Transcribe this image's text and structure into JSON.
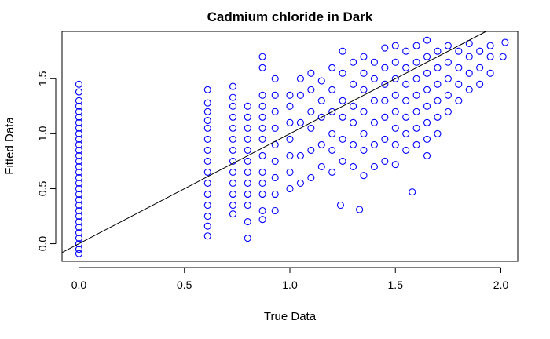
{
  "chart_data": {
    "type": "scatter",
    "title": "Cadmium chloride in Dark",
    "xlabel": "True Data",
    "ylabel": "Fitted Data",
    "xlim": [
      -0.08,
      2.08
    ],
    "ylim": [
      -0.16,
      1.93
    ],
    "x_ticks": [
      0.0,
      0.5,
      1.0,
      1.5,
      2.0
    ],
    "x_tick_labels": [
      "0.0",
      "0.5",
      "1.0",
      "1.5",
      "2.0"
    ],
    "y_ticks": [
      0.0,
      0.5,
      1.0,
      1.5
    ],
    "y_tick_labels": [
      "0.0",
      "0.5",
      "1.0",
      "1.5"
    ],
    "grid": false,
    "marker": "open-circle",
    "point_color": "#0000ff",
    "reference_line": {
      "intercept": 0.0,
      "slope": 1.0,
      "color": "#000000"
    },
    "series": [
      {
        "points": [
          [
            0,
            -0.09
          ],
          [
            0,
            -0.05
          ],
          [
            0,
            0.0
          ],
          [
            0,
            0.05
          ],
          [
            0,
            0.1
          ],
          [
            0,
            0.15
          ],
          [
            0,
            0.2
          ],
          [
            0,
            0.25
          ],
          [
            0,
            0.3
          ],
          [
            0,
            0.35
          ],
          [
            0,
            0.4
          ],
          [
            0,
            0.45
          ],
          [
            0,
            0.5
          ],
          [
            0,
            0.55
          ],
          [
            0,
            0.6
          ],
          [
            0,
            0.65
          ],
          [
            0,
            0.7
          ],
          [
            0,
            0.75
          ],
          [
            0,
            0.8
          ],
          [
            0,
            0.85
          ],
          [
            0,
            0.9
          ],
          [
            0,
            0.95
          ],
          [
            0,
            1.0
          ],
          [
            0,
            1.05
          ],
          [
            0,
            1.1
          ],
          [
            0,
            1.15
          ],
          [
            0,
            1.2
          ],
          [
            0,
            1.25
          ],
          [
            0,
            1.3
          ],
          [
            0,
            1.38
          ],
          [
            0,
            1.45
          ],
          [
            0.61,
            0.07
          ],
          [
            0.61,
            0.16
          ],
          [
            0.61,
            0.25
          ],
          [
            0.61,
            0.35
          ],
          [
            0.61,
            0.45
          ],
          [
            0.61,
            0.55
          ],
          [
            0.61,
            0.65
          ],
          [
            0.61,
            0.75
          ],
          [
            0.61,
            0.85
          ],
          [
            0.61,
            0.95
          ],
          [
            0.61,
            1.05
          ],
          [
            0.61,
            1.12
          ],
          [
            0.61,
            1.2
          ],
          [
            0.61,
            1.28
          ],
          [
            0.61,
            1.4
          ],
          [
            0.73,
            0.27
          ],
          [
            0.73,
            0.35
          ],
          [
            0.73,
            0.45
          ],
          [
            0.73,
            0.55
          ],
          [
            0.73,
            0.65
          ],
          [
            0.73,
            0.75
          ],
          [
            0.73,
            0.85
          ],
          [
            0.73,
            0.95
          ],
          [
            0.73,
            1.05
          ],
          [
            0.73,
            1.15
          ],
          [
            0.73,
            1.25
          ],
          [
            0.73,
            1.33
          ],
          [
            0.73,
            1.43
          ],
          [
            0.8,
            0.05
          ],
          [
            0.8,
            0.2
          ],
          [
            0.8,
            0.35
          ],
          [
            0.8,
            0.45
          ],
          [
            0.8,
            0.55
          ],
          [
            0.8,
            0.65
          ],
          [
            0.8,
            0.75
          ],
          [
            0.8,
            0.85
          ],
          [
            0.8,
            0.95
          ],
          [
            0.8,
            1.05
          ],
          [
            0.8,
            1.15
          ],
          [
            0.8,
            1.25
          ],
          [
            0.87,
            0.22
          ],
          [
            0.87,
            0.3
          ],
          [
            0.87,
            0.45
          ],
          [
            0.87,
            0.55
          ],
          [
            0.87,
            0.65
          ],
          [
            0.87,
            0.8
          ],
          [
            0.87,
            0.95
          ],
          [
            0.87,
            1.05
          ],
          [
            0.87,
            1.15
          ],
          [
            0.87,
            1.25
          ],
          [
            0.87,
            1.35
          ],
          [
            0.87,
            1.6
          ],
          [
            0.87,
            1.7
          ],
          [
            0.93,
            0.3
          ],
          [
            0.93,
            0.45
          ],
          [
            0.93,
            0.6
          ],
          [
            0.93,
            0.75
          ],
          [
            0.93,
            0.9
          ],
          [
            0.93,
            1.05
          ],
          [
            0.93,
            1.2
          ],
          [
            0.93,
            1.35
          ],
          [
            0.93,
            1.5
          ],
          [
            1.0,
            0.5
          ],
          [
            1.0,
            0.65
          ],
          [
            1.0,
            0.8
          ],
          [
            1.0,
            0.95
          ],
          [
            1.0,
            1.1
          ],
          [
            1.0,
            1.25
          ],
          [
            1.0,
            1.35
          ],
          [
            1.05,
            0.55
          ],
          [
            1.05,
            0.8
          ],
          [
            1.05,
            1.1
          ],
          [
            1.05,
            1.35
          ],
          [
            1.05,
            1.5
          ],
          [
            1.1,
            0.6
          ],
          [
            1.1,
            0.85
          ],
          [
            1.1,
            1.05
          ],
          [
            1.1,
            1.2
          ],
          [
            1.1,
            1.4
          ],
          [
            1.1,
            1.55
          ],
          [
            1.15,
            0.7
          ],
          [
            1.15,
            0.9
          ],
          [
            1.15,
            1.15
          ],
          [
            1.15,
            1.3
          ],
          [
            1.15,
            1.48
          ],
          [
            1.2,
            0.65
          ],
          [
            1.2,
            0.85
          ],
          [
            1.2,
            1.0
          ],
          [
            1.2,
            1.2
          ],
          [
            1.2,
            1.4
          ],
          [
            1.2,
            1.6
          ],
          [
            1.24,
            0.35
          ],
          [
            1.25,
            0.75
          ],
          [
            1.25,
            0.95
          ],
          [
            1.25,
            1.15
          ],
          [
            1.25,
            1.3
          ],
          [
            1.25,
            1.55
          ],
          [
            1.25,
            1.75
          ],
          [
            1.3,
            0.7
          ],
          [
            1.3,
            0.9
          ],
          [
            1.3,
            1.1
          ],
          [
            1.3,
            1.25
          ],
          [
            1.3,
            1.45
          ],
          [
            1.3,
            1.65
          ],
          [
            1.33,
            0.31
          ],
          [
            1.35,
            0.62
          ],
          [
            1.35,
            0.85
          ],
          [
            1.35,
            1.0
          ],
          [
            1.35,
            1.2
          ],
          [
            1.35,
            1.4
          ],
          [
            1.35,
            1.55
          ],
          [
            1.35,
            1.7
          ],
          [
            1.4,
            0.7
          ],
          [
            1.4,
            0.9
          ],
          [
            1.4,
            1.1
          ],
          [
            1.4,
            1.3
          ],
          [
            1.4,
            1.5
          ],
          [
            1.4,
            1.65
          ],
          [
            1.45,
            0.75
          ],
          [
            1.45,
            0.95
          ],
          [
            1.45,
            1.15
          ],
          [
            1.45,
            1.3
          ],
          [
            1.45,
            1.45
          ],
          [
            1.45,
            1.6
          ],
          [
            1.45,
            1.78
          ],
          [
            1.5,
            0.72
          ],
          [
            1.5,
            0.9
          ],
          [
            1.5,
            1.05
          ],
          [
            1.5,
            1.2
          ],
          [
            1.5,
            1.35
          ],
          [
            1.5,
            1.5
          ],
          [
            1.5,
            1.65
          ],
          [
            1.5,
            1.8
          ],
          [
            1.55,
            0.85
          ],
          [
            1.55,
            1.0
          ],
          [
            1.55,
            1.15
          ],
          [
            1.55,
            1.3
          ],
          [
            1.55,
            1.45
          ],
          [
            1.55,
            1.6
          ],
          [
            1.55,
            1.75
          ],
          [
            1.58,
            0.47
          ],
          [
            1.6,
            0.9
          ],
          [
            1.6,
            1.05
          ],
          [
            1.6,
            1.2
          ],
          [
            1.6,
            1.35
          ],
          [
            1.6,
            1.5
          ],
          [
            1.6,
            1.65
          ],
          [
            1.6,
            1.8
          ],
          [
            1.65,
            0.8
          ],
          [
            1.65,
            0.95
          ],
          [
            1.65,
            1.1
          ],
          [
            1.65,
            1.25
          ],
          [
            1.65,
            1.4
          ],
          [
            1.65,
            1.55
          ],
          [
            1.65,
            1.7
          ],
          [
            1.65,
            1.85
          ],
          [
            1.7,
            1.0
          ],
          [
            1.7,
            1.15
          ],
          [
            1.7,
            1.3
          ],
          [
            1.7,
            1.45
          ],
          [
            1.7,
            1.6
          ],
          [
            1.7,
            1.75
          ],
          [
            1.75,
            1.2
          ],
          [
            1.75,
            1.35
          ],
          [
            1.75,
            1.5
          ],
          [
            1.75,
            1.65
          ],
          [
            1.75,
            1.8
          ],
          [
            1.8,
            1.3
          ],
          [
            1.8,
            1.45
          ],
          [
            1.8,
            1.6
          ],
          [
            1.8,
            1.75
          ],
          [
            1.85,
            1.4
          ],
          [
            1.85,
            1.55
          ],
          [
            1.85,
            1.7
          ],
          [
            1.85,
            1.82
          ],
          [
            1.9,
            1.45
          ],
          [
            1.9,
            1.6
          ],
          [
            1.9,
            1.75
          ],
          [
            1.95,
            1.55
          ],
          [
            1.95,
            1.7
          ],
          [
            1.95,
            1.8
          ],
          [
            2.01,
            1.7
          ],
          [
            2.02,
            1.83
          ]
        ]
      }
    ]
  }
}
